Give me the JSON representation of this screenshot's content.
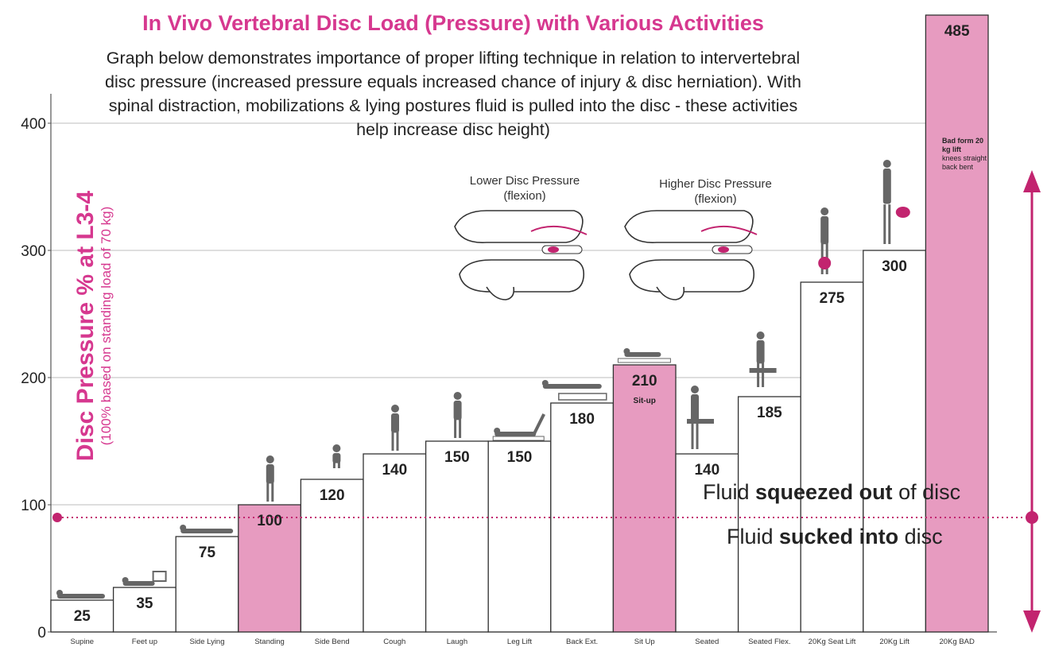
{
  "title": "In Vivo Vertebral Disc Load (Pressure) with Various Activities",
  "subtitle": "Graph below demonstrates importance of proper lifting technique in relation to intervertebral disc pressure (increased pressure equals increased chance of injury & disc herniation). With spinal distraction, mobilizations & lying postures fluid is pulled into the disc - these activities help increase disc height)",
  "ylabel_main": "Disc Pressure  % at L3-4",
  "ylabel_sub": "(100% based on standing load of 70 kg)",
  "spine_labels": {
    "lower_line1": "Lower Disc Pressure",
    "lower_line2": "(flexion)",
    "higher_line1": "Higher Disc Pressure",
    "higher_line2": "(flexion)"
  },
  "fluid_out": {
    "pre": "Fluid ",
    "bold": "squeezed out",
    "post": " of disc"
  },
  "fluid_in": {
    "pre": "Fluid ",
    "bold": "sucked into",
    "post": " disc"
  },
  "bad_form_note": {
    "bold": "Bad form 20 kg lift",
    "rest": "knees straight back bent"
  },
  "sit_up_note": "Sit-up",
  "colors": {
    "accent": "#d6388f",
    "highlight_bar": "#e79bc0",
    "plain_bar": "#ffffff",
    "bar_border": "#333333",
    "figure": "#666666",
    "figure_accent": "#c2246f"
  },
  "chart_data": {
    "type": "bar",
    "categories": [
      "Supine",
      "Feet up",
      "Side Lying",
      "Standing",
      "Side Bend",
      "Cough",
      "Laugh",
      "Leg Lift",
      "Back Ext.",
      "Sit Up",
      "Seated",
      "Seated Flex.",
      "20Kg Seat Lift",
      "20Kg Lift",
      "20Kg BAD"
    ],
    "values": [
      25,
      35,
      75,
      100,
      120,
      140,
      150,
      150,
      180,
      210,
      140,
      185,
      275,
      300,
      485
    ],
    "value_labels": [
      "25",
      "35",
      "75",
      "100",
      "120",
      "140",
      "150",
      "150",
      "180",
      "210",
      "140",
      "185",
      "275",
      "300",
      "485"
    ],
    "highlighted": [
      "Standing",
      "Sit Up",
      "20Kg BAD"
    ],
    "yticks": [
      0,
      100,
      200,
      300,
      400
    ],
    "ytick_labels": [
      "0",
      "100",
      "200",
      "300",
      "400"
    ],
    "ylim": [
      0,
      400
    ],
    "grid": "horizontal",
    "reference_line": 90
  }
}
